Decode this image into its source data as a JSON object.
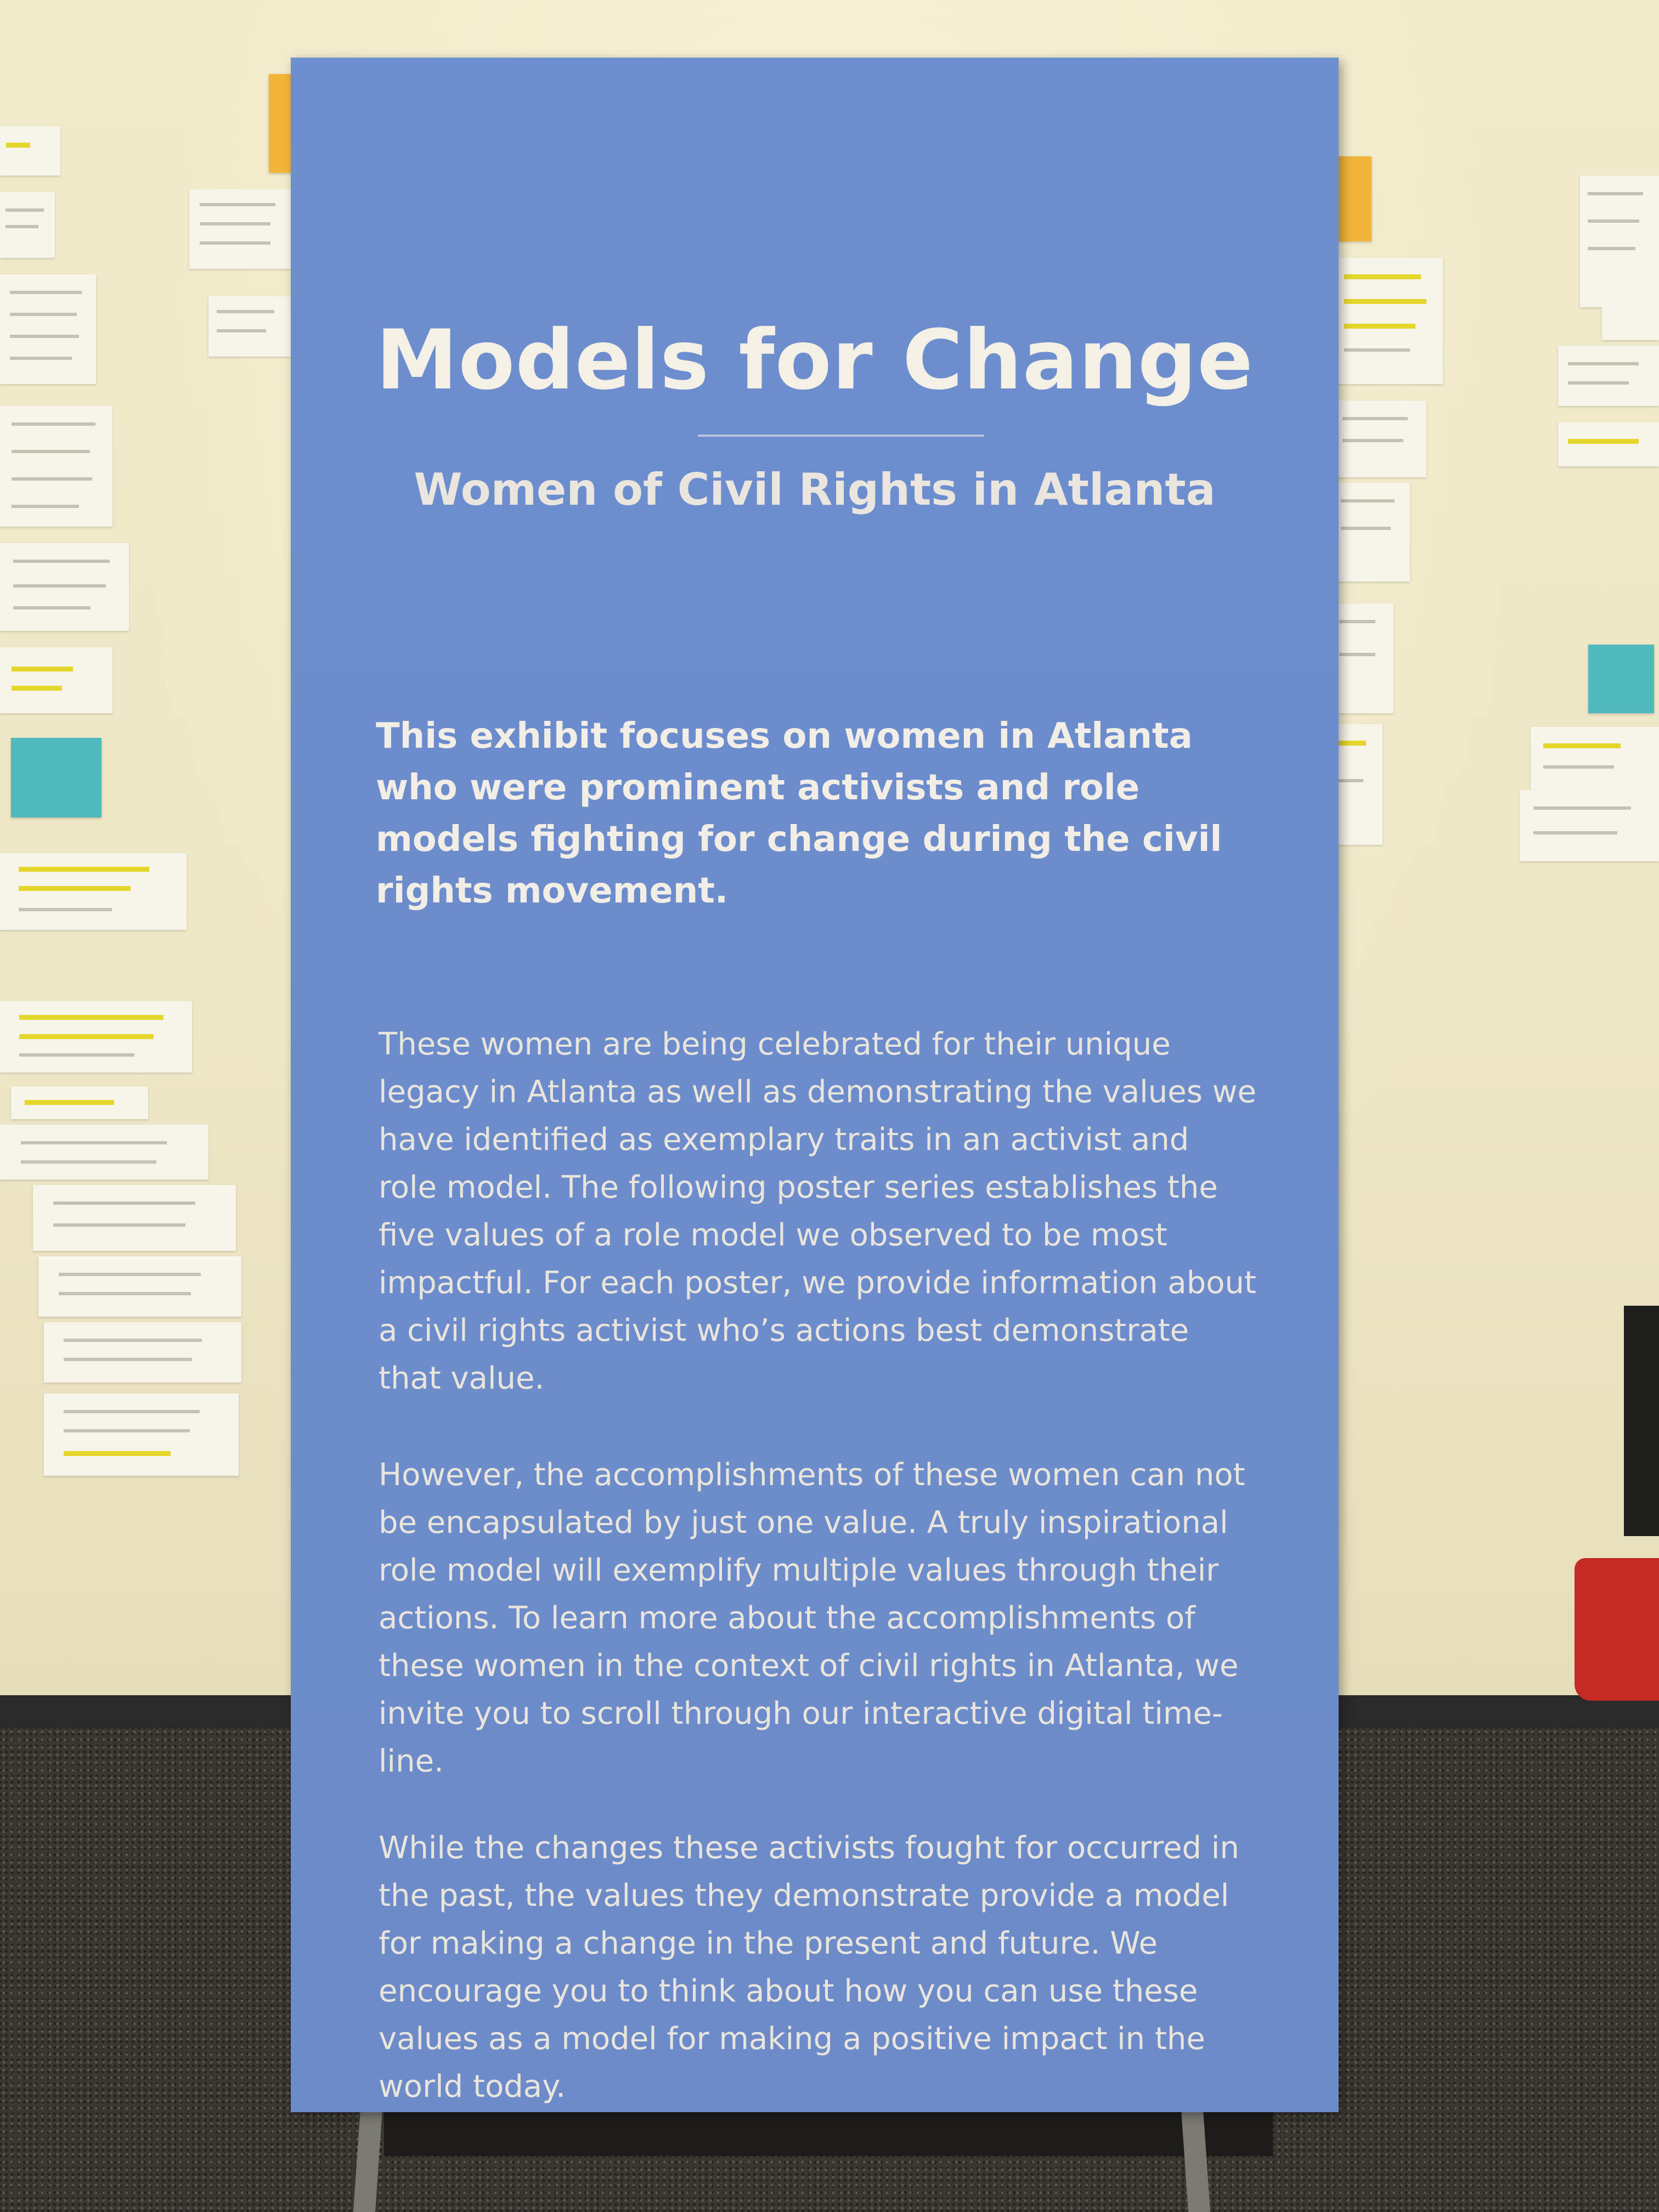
{
  "poster": {
    "title": "Models for Change",
    "subtitle": "Women of Civil Rights in Atlanta",
    "lead": "This exhibit focuses on women in Atlanta who were prominent activists and role models fighting for change during the civil rights movement.",
    "paragraphs": [
      "These women are being celebrated for their unique legacy in Atlanta as well as demonstrating the values we have identified as exemplary traits in an activist and role model. The following poster series establishes the five values of a role model we observed to be most impactful. For each poster, we provide information about a civil rights activist who’s actions best demonstrate that value.",
      "However, the accomplishments of these women can not be encapsulated by just one value. A truly inspirational role model will exemplify multiple values through their actions. To learn more about the accomplishments of these women in the context of civil rights in Atlanta, we invite you to scroll through our interactive digital time-line.",
      "While the changes these activists fought for occurred in the past, the values they demonstrate provide a model for making a change in the present and future. We encourage you to think about how you can use these values as a model for making a positive impact in the world today."
    ]
  },
  "colors": {
    "poster_blue": "#6e8fcf",
    "text_cream": "#f4f0e6",
    "wall": "#efe8c7",
    "sticky_teal": "#4fb9bd",
    "sticky_orange": "#f2b53a",
    "highlighter": "#e4d62a"
  }
}
